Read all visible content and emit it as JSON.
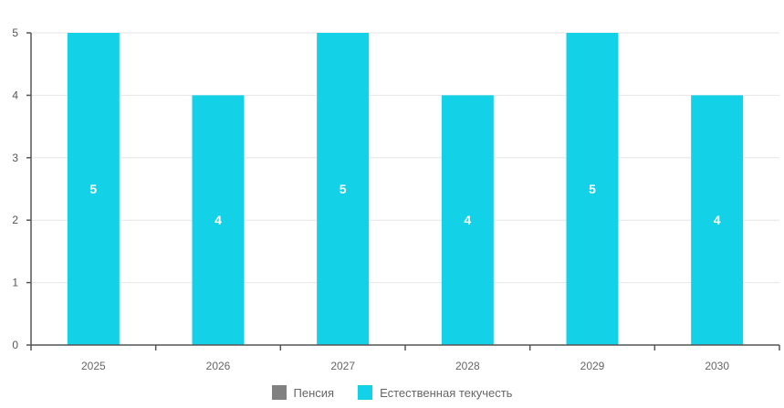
{
  "chart_data": {
    "type": "bar",
    "title": "",
    "xlabel": "",
    "ylabel": "",
    "categories": [
      "2025",
      "2026",
      "2027",
      "2028",
      "2029",
      "2030"
    ],
    "series": [
      {
        "name": "Пенсия",
        "color": "#808080",
        "values": [
          0,
          0,
          0,
          0,
          0,
          0
        ]
      },
      {
        "name": "Естественная текучесть",
        "color": "#13d1e6",
        "values": [
          5,
          4,
          5,
          4,
          5,
          4
        ]
      }
    ],
    "data_labels": [
      "5",
      "4",
      "5",
      "4",
      "5",
      "4"
    ],
    "y_ticks": [
      "0",
      "1",
      "2",
      "3",
      "4",
      "5"
    ],
    "ylim": [
      0,
      5
    ],
    "grid": true,
    "legend_position": "bottom"
  }
}
